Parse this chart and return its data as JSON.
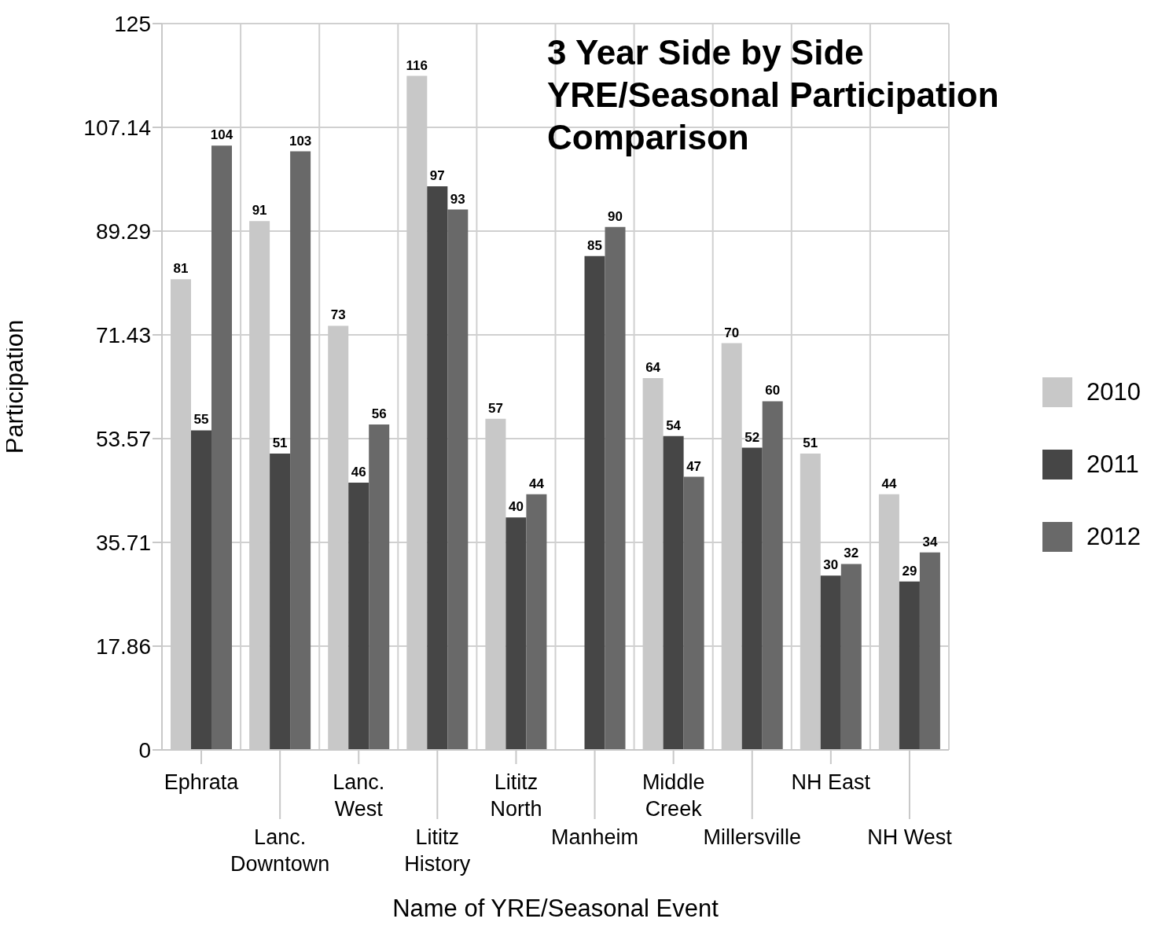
{
  "chart_data": {
    "type": "bar",
    "title": "3 Year Side by Side\nYRE/Seasonal Participation\nComparison",
    "xlabel": "Name of YRE/Seasonal Event",
    "ylabel": "Participation",
    "categories": [
      "Ephrata",
      "Lanc. Downtown",
      "Lanc. West",
      "Lititz History",
      "Lititz North",
      "Manheim",
      "Middle Creek",
      "Millersville",
      "NH East",
      "NH West"
    ],
    "series": [
      {
        "name": "2010",
        "color": "#c8c8c8",
        "values": [
          81,
          91,
          73,
          116,
          57,
          null,
          64,
          70,
          51,
          44
        ]
      },
      {
        "name": "2011",
        "color": "#464646",
        "values": [
          55,
          51,
          46,
          97,
          40,
          85,
          54,
          52,
          30,
          29
        ]
      },
      {
        "name": "2012",
        "color": "#696969",
        "values": [
          104,
          103,
          56,
          93,
          44,
          90,
          47,
          60,
          32,
          34
        ]
      }
    ],
    "ylim": [
      0,
      125
    ],
    "yticks": [
      0,
      17.86,
      35.71,
      53.57,
      71.43,
      89.29,
      107.14,
      125
    ],
    "grid": true,
    "legend": "right",
    "data_labels": true
  }
}
